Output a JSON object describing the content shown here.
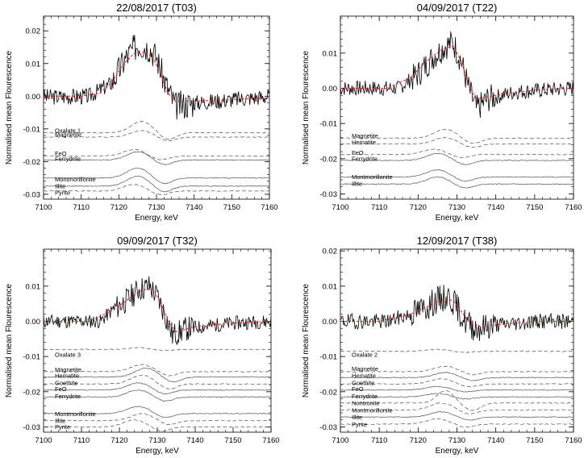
{
  "chart_data": [
    {
      "type": "line",
      "title": "22/08/2017 (T03)",
      "xlabel": "Energy, keV",
      "ylabel": "Normalised mean Flourescence",
      "xlim": [
        7100,
        7160
      ],
      "ylim": [
        -0.0315,
        0.0245
      ],
      "x_ticks": [
        "7100",
        "7110",
        "7120",
        "7130",
        "7140",
        "7150",
        "7160"
      ],
      "y_ticks": [
        {
          "v": 0.02,
          "label": "0.02"
        },
        {
          "v": 0.01,
          "label": "0.01"
        },
        {
          "v": 0.0,
          "label": "0.00"
        },
        {
          "v": -0.01,
          "label": "-0.01"
        },
        {
          "v": -0.02,
          "label": "-0.02"
        },
        {
          "v": -0.03,
          "label": "-0.03"
        }
      ],
      "grid": false,
      "measured": {
        "style": "black noisy line",
        "shape": [
          [
            7100,
            -0.0002
          ],
          [
            7112,
            0.0
          ],
          [
            7118,
            0.004
          ],
          [
            7122,
            0.012
          ],
          [
            7125,
            0.016
          ],
          [
            7128,
            0.015
          ],
          [
            7130,
            0.012
          ],
          [
            7132,
            0.005
          ],
          [
            7135,
            -0.003
          ],
          [
            7140,
            -0.002
          ],
          [
            7150,
            -0.001
          ],
          [
            7160,
            0.0
          ]
        ],
        "noise": 0.0025,
        "seed": 3
      },
      "fit": {
        "style": "red dashed line",
        "color": "#e8262a",
        "points": [
          [
            7100,
            0.0
          ],
          [
            7110,
            0.0
          ],
          [
            7115,
            0.001
          ],
          [
            7118,
            0.004
          ],
          [
            7121,
            0.0095
          ],
          [
            7124,
            0.013
          ],
          [
            7127,
            0.0135
          ],
          [
            7129,
            0.012
          ],
          [
            7131,
            0.007
          ],
          [
            7133,
            0.001
          ],
          [
            7135,
            -0.0015
          ],
          [
            7140,
            -0.0015
          ],
          [
            7150,
            -0.001
          ],
          [
            7160,
            -0.0005
          ]
        ]
      },
      "references": [
        {
          "name": "Oxalate 1",
          "style": "dashed",
          "label_y": -0.0105,
          "base": -0.0112,
          "bump": 0.0035,
          "center": 7126,
          "width": 4
        },
        {
          "name": "Magnetite",
          "style": "dashed",
          "label_y": -0.0118,
          "base": -0.0125,
          "bump": 0.002,
          "center": 7126,
          "width": 4
        },
        {
          "name": "FeO",
          "style": "dashed",
          "label_y": -0.0175,
          "base": -0.0183,
          "bump": 0.002,
          "center": 7124,
          "width": 4
        },
        {
          "name": "Ferrydrite",
          "style": "solid",
          "label_y": -0.0192,
          "base": -0.0195,
          "bump": 0.0025,
          "center": 7125,
          "width": 4
        },
        {
          "name": "Montmorillonite",
          "style": "solid",
          "label_y": -0.0255,
          "base": -0.025,
          "bump": 0.003,
          "center": 7125,
          "width": 4
        },
        {
          "name": "Illite",
          "style": "solid",
          "label_y": -0.0275,
          "base": -0.0275,
          "bump": 0.003,
          "center": 7125,
          "width": 4
        },
        {
          "name": "Pyrite",
          "style": "dashed",
          "label_y": -0.0295,
          "base": -0.029,
          "bump": 0.002,
          "center": 7124,
          "width": 4
        }
      ]
    },
    {
      "type": "line",
      "title": "04/09/2017 (T22)",
      "xlabel": "Energy, keV",
      "ylabel": "Normalised mean Flourescence",
      "xlim": [
        7100,
        7160
      ],
      "ylim": [
        -0.0315,
        0.0205
      ],
      "x_ticks": [
        "7100",
        "7110",
        "7120",
        "7130",
        "7140",
        "7150",
        "7160"
      ],
      "y_ticks": [
        {
          "v": 0.01,
          "label": "0.01"
        },
        {
          "v": 0.0,
          "label": "0.00"
        },
        {
          "v": -0.01,
          "label": "-0.01"
        },
        {
          "v": -0.02,
          "label": "-0.02"
        },
        {
          "v": -0.03,
          "label": "-0.03"
        }
      ],
      "grid": false,
      "measured": {
        "style": "black noisy line",
        "shape": [
          [
            7100,
            0.0
          ],
          [
            7115,
            0.0
          ],
          [
            7120,
            0.004
          ],
          [
            7124,
            0.009
          ],
          [
            7127,
            0.012
          ],
          [
            7129,
            0.013
          ],
          [
            7131,
            0.008
          ],
          [
            7133,
            0.0
          ],
          [
            7135,
            -0.006
          ],
          [
            7138,
            -0.003
          ],
          [
            7145,
            -0.001
          ],
          [
            7160,
            0.0
          ]
        ],
        "noise": 0.0022,
        "seed": 7
      },
      "fit": {
        "style": "red dashed line",
        "color": "#e8262a",
        "points": [
          [
            7100,
            0.0
          ],
          [
            7112,
            0.0
          ],
          [
            7118,
            0.003
          ],
          [
            7122,
            0.0075
          ],
          [
            7126,
            0.011
          ],
          [
            7129,
            0.012
          ],
          [
            7131,
            0.008
          ],
          [
            7133,
            0.001
          ],
          [
            7135,
            -0.003
          ],
          [
            7140,
            -0.002
          ],
          [
            7150,
            -0.0005
          ],
          [
            7160,
            0.0
          ]
        ]
      },
      "references": [
        {
          "name": "Magnetite",
          "style": "dashed",
          "label_y": -0.0135,
          "base": -0.0142,
          "bump": 0.0025,
          "center": 7127,
          "width": 4
        },
        {
          "name": "Hematite",
          "style": "dashed",
          "label_y": -0.0153,
          "base": -0.0158,
          "bump": 0.0018,
          "center": 7127,
          "width": 4
        },
        {
          "name": "FeO",
          "style": "dashed",
          "label_y": -0.0183,
          "base": -0.0188,
          "bump": 0.0015,
          "center": 7124,
          "width": 4
        },
        {
          "name": "Ferrydrite",
          "style": "solid",
          "label_y": -0.02,
          "base": -0.0205,
          "bump": 0.002,
          "center": 7125,
          "width": 4
        },
        {
          "name": "Montmorillonite",
          "style": "solid",
          "label_y": -0.0252,
          "base": -0.0252,
          "bump": 0.002,
          "center": 7125,
          "width": 4
        },
        {
          "name": "Illite",
          "style": "solid",
          "label_y": -0.0272,
          "base": -0.0272,
          "bump": 0.002,
          "center": 7125,
          "width": 4
        }
      ]
    },
    {
      "type": "line",
      "title": "09/09/2017 (T32)",
      "xlabel": "Energy, keV",
      "ylabel": "Normalised mean Flourescence",
      "xlim": [
        7100,
        7160
      ],
      "ylim": [
        -0.0315,
        0.0205
      ],
      "x_ticks": [
        "7100",
        "7110",
        "7120",
        "7130",
        "7140",
        "7150",
        "7160"
      ],
      "y_ticks": [
        {
          "v": 0.01,
          "label": "0.01"
        },
        {
          "v": 0.0,
          "label": "0.00"
        },
        {
          "v": -0.01,
          "label": "-0.01"
        },
        {
          "v": -0.02,
          "label": "-0.02"
        },
        {
          "v": -0.03,
          "label": "-0.03"
        }
      ],
      "grid": false,
      "measured": {
        "style": "black noisy line",
        "shape": [
          [
            7100,
            0.0
          ],
          [
            7115,
            0.0
          ],
          [
            7118,
            0.003
          ],
          [
            7122,
            0.006
          ],
          [
            7125,
            0.009
          ],
          [
            7128,
            0.01
          ],
          [
            7130,
            0.007
          ],
          [
            7132,
            0.002
          ],
          [
            7134,
            -0.004
          ],
          [
            7138,
            -0.002
          ],
          [
            7150,
            -0.0005
          ],
          [
            7160,
            0.0
          ]
        ],
        "noise": 0.002,
        "seed": 11
      },
      "fit": {
        "style": "red dashed line",
        "color": "#e8262a",
        "points": [
          [
            7100,
            0.0
          ],
          [
            7112,
            0.0
          ],
          [
            7118,
            0.003
          ],
          [
            7122,
            0.006
          ],
          [
            7126,
            0.009
          ],
          [
            7129,
            0.009
          ],
          [
            7131,
            0.005
          ],
          [
            7133,
            0.0
          ],
          [
            7135,
            -0.003
          ],
          [
            7140,
            -0.0015
          ],
          [
            7150,
            -0.0005
          ],
          [
            7160,
            0.0
          ]
        ]
      },
      "references": [
        {
          "name": "Oxalate 3",
          "style": "dashed",
          "label_y": -0.0095,
          "base": -0.008,
          "bump": 0.0005,
          "center": 7125,
          "width": 4
        },
        {
          "name": "Magnetite",
          "style": "dashed",
          "label_y": -0.0137,
          "base": -0.0143,
          "bump": 0.002,
          "center": 7126,
          "width": 4
        },
        {
          "name": "Hematite",
          "style": "solid",
          "label_y": -0.0155,
          "base": -0.0158,
          "bump": 0.0025,
          "center": 7127,
          "width": 4
        },
        {
          "name": "Goethite",
          "style": "dashed",
          "label_y": -0.0175,
          "base": -0.0178,
          "bump": 0.0025,
          "center": 7126,
          "width": 4
        },
        {
          "name": "FeO",
          "style": "solid",
          "label_y": -0.0193,
          "base": -0.0195,
          "bump": 0.002,
          "center": 7125,
          "width": 4
        },
        {
          "name": "Ferrydrite",
          "style": "solid",
          "label_y": -0.0213,
          "base": -0.0215,
          "bump": 0.002,
          "center": 7125,
          "width": 4
        },
        {
          "name": "Montmorillonite",
          "style": "solid",
          "label_y": -0.0263,
          "base": -0.0262,
          "bump": 0.002,
          "center": 7125,
          "width": 4
        },
        {
          "name": "Illite",
          "style": "dashed",
          "label_y": -0.0283,
          "base": -0.0282,
          "bump": 0.002,
          "center": 7126,
          "width": 4
        },
        {
          "name": "Pyrite",
          "style": "dashed",
          "label_y": -0.03,
          "base": -0.03,
          "bump": 0.002,
          "center": 7124,
          "width": 4
        }
      ]
    },
    {
      "type": "line",
      "title": "12/09/2017 (T38)",
      "xlabel": "Energy, keV",
      "ylabel": "Normalised mean Flourescence",
      "xlim": [
        7100,
        7160
      ],
      "ylim": [
        -0.0315,
        0.0205
      ],
      "x_ticks": [
        "7100",
        "7110",
        "7120",
        "7130",
        "7140",
        "7150",
        "7160"
      ],
      "y_ticks": [
        {
          "v": 0.02,
          "label": "0.02"
        },
        {
          "v": 0.01,
          "label": "0.01"
        },
        {
          "v": 0.0,
          "label": "0.00"
        },
        {
          "v": -0.01,
          "label": "-0.01"
        },
        {
          "v": -0.02,
          "label": "-0.02"
        },
        {
          "v": -0.03,
          "label": "-0.03"
        }
      ],
      "grid": false,
      "measured": {
        "style": "black noisy line",
        "shape": [
          [
            7100,
            0.0
          ],
          [
            7112,
            0.0
          ],
          [
            7118,
            0.002
          ],
          [
            7122,
            0.004
          ],
          [
            7125,
            0.006
          ],
          [
            7128,
            0.007
          ],
          [
            7130,
            0.004
          ],
          [
            7132,
            0.0
          ],
          [
            7135,
            -0.002
          ],
          [
            7140,
            -0.001
          ],
          [
            7150,
            0.0
          ],
          [
            7160,
            0.0
          ]
        ],
        "noise": 0.0022,
        "seed": 19
      },
      "fit": {
        "style": "red dashed line",
        "color": "#e8262a",
        "points": [
          [
            7100,
            0.0
          ],
          [
            7110,
            0.0
          ],
          [
            7118,
            0.002
          ],
          [
            7122,
            0.004
          ],
          [
            7126,
            0.006
          ],
          [
            7129,
            0.006
          ],
          [
            7131,
            0.003
          ],
          [
            7133,
            0.0
          ],
          [
            7136,
            -0.0015
          ],
          [
            7140,
            -0.001
          ],
          [
            7150,
            0.0
          ],
          [
            7160,
            0.0
          ]
        ]
      },
      "references": [
        {
          "name": "Oxalate 2",
          "style": "dashed",
          "label_y": -0.0095,
          "base": -0.0085,
          "bump": 0.0005,
          "center": 7125,
          "width": 4
        },
        {
          "name": "Magnetite",
          "style": "dashed",
          "label_y": -0.0135,
          "base": -0.0143,
          "bump": 0.0015,
          "center": 7127,
          "width": 4
        },
        {
          "name": "Hematite",
          "style": "solid",
          "label_y": -0.0155,
          "base": -0.016,
          "bump": 0.0015,
          "center": 7127,
          "width": 4
        },
        {
          "name": "Goethite",
          "style": "dashed",
          "label_y": -0.0175,
          "base": -0.0178,
          "bump": 0.0015,
          "center": 7126,
          "width": 4
        },
        {
          "name": "FeO",
          "style": "solid",
          "label_y": -0.0193,
          "base": -0.0195,
          "bump": 0.001,
          "center": 7125,
          "width": 4
        },
        {
          "name": "Ferrydrite",
          "style": "solid",
          "label_y": -0.0213,
          "base": -0.0215,
          "bump": 0.001,
          "center": 7125,
          "width": 4
        },
        {
          "name": "Nontronite",
          "style": "dashed",
          "label_y": -0.0233,
          "base": -0.0232,
          "bump": 0.0035,
          "center": 7127,
          "width": 3
        },
        {
          "name": "Montmorillonite",
          "style": "dashed",
          "label_y": -0.0253,
          "base": -0.0252,
          "bump": 0.002,
          "center": 7126,
          "width": 4
        },
        {
          "name": "Illite",
          "style": "solid",
          "label_y": -0.0273,
          "base": -0.0272,
          "bump": 0.0015,
          "center": 7126,
          "width": 4
        },
        {
          "name": "Pyrite",
          "style": "dashed",
          "label_y": -0.0293,
          "base": -0.0292,
          "bump": 0.0015,
          "center": 7125,
          "width": 4
        }
      ]
    }
  ]
}
